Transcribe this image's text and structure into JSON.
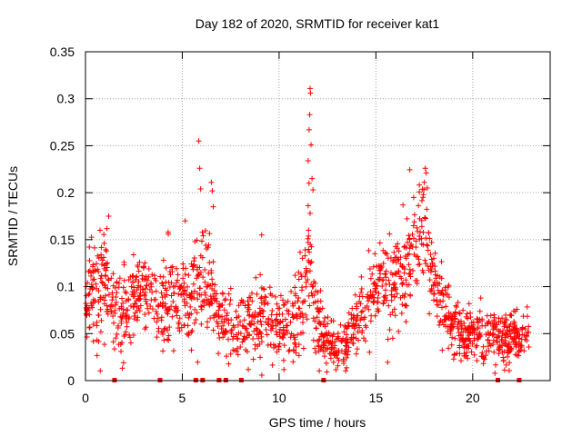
{
  "chart_data": {
    "type": "scatter",
    "title": "Day 182 of 2020, SRMTID for receiver kat1",
    "xlabel": "GPS time / hours",
    "ylabel": "SRMTID / TECUs",
    "xlim": [
      0,
      24
    ],
    "ylim": [
      0,
      0.35
    ],
    "x_ticks": [
      0,
      5,
      10,
      15,
      20
    ],
    "y_ticks": [
      0,
      0.05,
      0.1,
      0.15,
      0.2,
      0.25,
      0.3,
      0.35
    ],
    "y_tick_labels": [
      "0",
      "0.05",
      "0.1",
      "0.15",
      "0.2",
      "0.25",
      "0.3",
      "0.35"
    ],
    "grid": true,
    "marker": "+",
    "color": "#ff0000",
    "envelope": {
      "x": [
        0.0,
        0.3,
        0.6,
        1.0,
        1.4,
        1.8,
        2.2,
        2.6,
        3.0,
        3.4,
        3.8,
        4.2,
        4.6,
        5.0,
        5.4,
        5.6,
        5.8,
        6.0,
        6.4,
        6.8,
        7.2,
        7.6,
        8.0,
        8.5,
        9.0,
        9.5,
        10.0,
        10.5,
        10.8,
        11.2,
        11.5,
        11.8,
        12.2,
        12.6,
        13.0,
        13.5,
        14.0,
        14.5,
        15.0,
        15.5,
        16.0,
        16.5,
        17.0,
        17.5,
        17.8,
        18.2,
        18.6,
        19.0,
        19.5,
        20.0,
        20.5,
        21.0,
        21.5,
        22.0,
        22.5,
        22.9
      ],
      "mid": [
        0.07,
        0.1,
        0.09,
        0.11,
        0.08,
        0.07,
        0.08,
        0.09,
        0.1,
        0.09,
        0.07,
        0.1,
        0.09,
        0.09,
        0.07,
        0.09,
        0.1,
        0.11,
        0.1,
        0.07,
        0.06,
        0.055,
        0.055,
        0.06,
        0.065,
        0.06,
        0.055,
        0.05,
        0.06,
        0.09,
        0.13,
        0.08,
        0.05,
        0.04,
        0.035,
        0.04,
        0.06,
        0.08,
        0.1,
        0.11,
        0.1,
        0.11,
        0.14,
        0.16,
        0.12,
        0.09,
        0.07,
        0.06,
        0.05,
        0.055,
        0.045,
        0.05,
        0.045,
        0.05,
        0.045,
        0.05
      ],
      "spread": [
        0.03,
        0.045,
        0.05,
        0.045,
        0.04,
        0.04,
        0.04,
        0.04,
        0.04,
        0.035,
        0.035,
        0.045,
        0.045,
        0.045,
        0.04,
        0.05,
        0.05,
        0.05,
        0.045,
        0.035,
        0.03,
        0.03,
        0.03,
        0.035,
        0.04,
        0.035,
        0.035,
        0.035,
        0.04,
        0.045,
        0.05,
        0.04,
        0.025,
        0.025,
        0.02,
        0.025,
        0.03,
        0.035,
        0.035,
        0.04,
        0.04,
        0.045,
        0.05,
        0.05,
        0.04,
        0.035,
        0.03,
        0.03,
        0.025,
        0.025,
        0.025,
        0.025,
        0.025,
        0.025,
        0.025,
        0.025
      ]
    },
    "peaks": [
      {
        "x": 5.85,
        "y": 0.255
      },
      {
        "x": 5.9,
        "y": 0.226
      },
      {
        "x": 5.95,
        "y": 0.204
      },
      {
        "x": 6.5,
        "y": 0.211
      },
      {
        "x": 6.55,
        "y": 0.202
      },
      {
        "x": 6.6,
        "y": 0.185
      },
      {
        "x": 11.6,
        "y": 0.311
      },
      {
        "x": 11.62,
        "y": 0.306
      },
      {
        "x": 11.58,
        "y": 0.283
      },
      {
        "x": 11.55,
        "y": 0.267
      },
      {
        "x": 11.65,
        "y": 0.251
      },
      {
        "x": 11.5,
        "y": 0.234
      },
      {
        "x": 11.7,
        "y": 0.215
      },
      {
        "x": 11.75,
        "y": 0.203
      },
      {
        "x": 11.6,
        "y": 0.178
      },
      {
        "x": 11.52,
        "y": 0.16
      },
      {
        "x": 17.55,
        "y": 0.226
      },
      {
        "x": 17.6,
        "y": 0.221
      },
      {
        "x": 17.5,
        "y": 0.211
      },
      {
        "x": 17.45,
        "y": 0.198
      },
      {
        "x": 17.65,
        "y": 0.205
      },
      {
        "x": 16.95,
        "y": 0.195
      },
      {
        "x": 16.4,
        "y": 0.187
      },
      {
        "x": 1.2,
        "y": 0.175
      },
      {
        "x": 0.75,
        "y": 0.16
      },
      {
        "x": 5.15,
        "y": 0.17
      },
      {
        "x": 9.1,
        "y": 0.155
      }
    ],
    "baseline_markers_x": [
      1.5,
      3.85,
      5.7,
      6.05,
      6.9,
      7.25,
      8.05,
      12.3,
      21.3,
      22.4
    ]
  }
}
